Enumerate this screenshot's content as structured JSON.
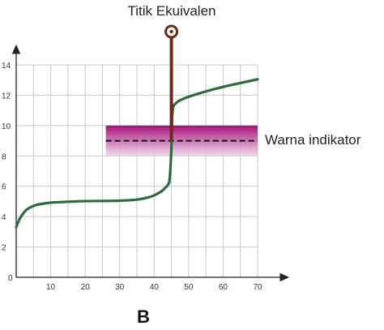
{
  "chart_data": {
    "type": "line",
    "panel_label": "B",
    "title": "",
    "xlabel": "",
    "ylabel": "",
    "xlim": [
      0,
      70
    ],
    "ylim": [
      0,
      14
    ],
    "grid": true,
    "x_ticks": [
      10,
      20,
      30,
      40,
      50,
      60,
      70
    ],
    "y_ticks": [
      2,
      4,
      6,
      8,
      10,
      12,
      14
    ],
    "origin_label": "0",
    "series": [
      {
        "color": "#2e6b3c",
        "x": [
          0,
          0.5,
          1,
          2,
          3,
          4,
          6,
          8,
          10,
          15,
          20,
          25,
          30,
          35,
          38,
          40,
          42,
          43,
          44,
          44.5,
          45,
          45.2,
          45.5,
          46,
          47,
          48,
          50,
          55,
          60,
          65,
          70
        ],
        "y": [
          3.3,
          3.6,
          3.85,
          4.2,
          4.45,
          4.6,
          4.78,
          4.86,
          4.92,
          4.98,
          5.02,
          5.03,
          5.05,
          5.12,
          5.25,
          5.4,
          5.65,
          5.85,
          6.1,
          6.5,
          8.5,
          10.5,
          11.2,
          11.4,
          11.6,
          11.72,
          11.9,
          12.25,
          12.55,
          12.8,
          13.05
        ]
      }
    ],
    "annotations": {
      "equivalence_point": {
        "label": "Titik Ekuivalen",
        "x": 45,
        "y": 9,
        "color": "#6b2a1c"
      },
      "indicator_band": {
        "label": "Warna indikator",
        "x_range": [
          26,
          70
        ],
        "y_range": [
          8,
          10
        ],
        "midline_y": 9,
        "color": "#a6127a"
      }
    }
  }
}
